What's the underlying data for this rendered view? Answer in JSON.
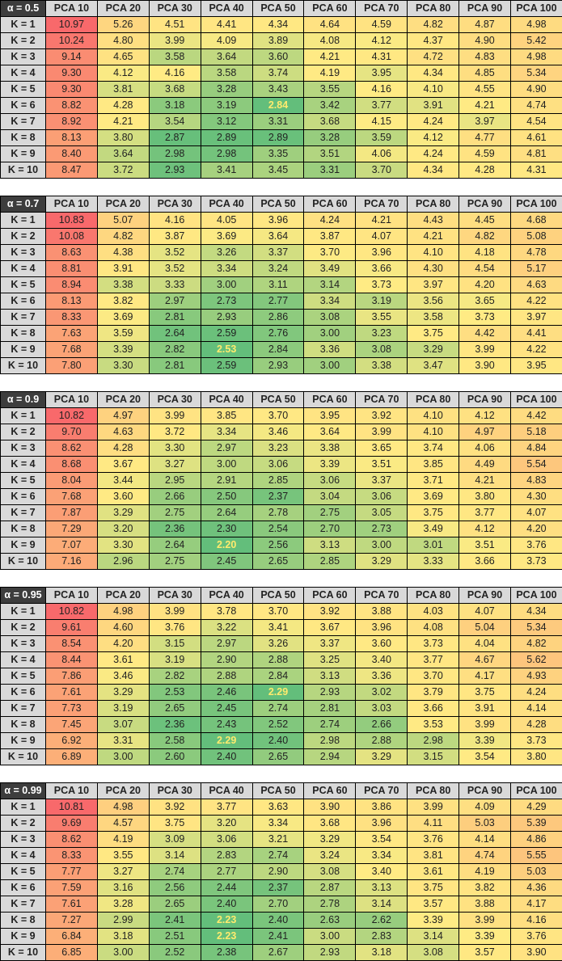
{
  "chart_data": {
    "type": "heatmap",
    "columns": [
      "PCA 10",
      "PCA 20",
      "PCA 30",
      "PCA 40",
      "PCA 50",
      "PCA 60",
      "PCA 70",
      "PCA 80",
      "PCA 90",
      "PCA 100"
    ],
    "rows": [
      "K = 1",
      "K = 2",
      "K = 3",
      "K = 4",
      "K = 5",
      "K = 6",
      "K = 7",
      "K = 8",
      "K = 9",
      "K = 10"
    ],
    "colors": {
      "low": "#63be7b",
      "mid": "#ffeb84",
      "high": "#f8696b",
      "header_bg": "#d9d9d9",
      "corner_bg": "#3d3d3d"
    },
    "tables": [
      {
        "label": "α = 0.5",
        "values": [
          [
            10.97,
            5.26,
            4.51,
            4.41,
            4.34,
            4.64,
            4.59,
            4.82,
            4.87,
            4.98
          ],
          [
            10.24,
            4.8,
            3.99,
            4.09,
            3.89,
            4.08,
            4.12,
            4.37,
            4.9,
            5.42
          ],
          [
            9.14,
            4.65,
            3.58,
            3.64,
            3.6,
            4.21,
            4.31,
            4.72,
            4.83,
            4.98
          ],
          [
            9.3,
            4.12,
            4.16,
            3.58,
            3.74,
            4.19,
            3.95,
            4.34,
            4.85,
            5.34
          ],
          [
            9.3,
            3.81,
            3.68,
            3.28,
            3.43,
            3.55,
            4.16,
            4.1,
            4.55,
            4.9
          ],
          [
            8.82,
            4.28,
            3.18,
            3.19,
            2.84,
            3.42,
            3.77,
            3.91,
            4.21,
            4.74
          ],
          [
            8.92,
            4.21,
            3.54,
            3.12,
            3.31,
            3.68,
            4.15,
            4.24,
            3.97,
            4.54
          ],
          [
            8.13,
            3.8,
            2.87,
            2.89,
            2.89,
            3.28,
            3.59,
            4.12,
            4.77,
            4.61
          ],
          [
            8.4,
            3.64,
            2.98,
            2.98,
            3.35,
            3.51,
            4.06,
            4.24,
            4.59,
            4.81
          ],
          [
            8.47,
            3.72,
            2.93,
            3.41,
            3.45,
            3.31,
            3.7,
            4.34,
            4.28,
            4.31
          ]
        ]
      },
      {
        "label": "α = 0.7",
        "values": [
          [
            10.83,
            5.07,
            4.16,
            4.05,
            3.96,
            4.24,
            4.21,
            4.43,
            4.45,
            4.68
          ],
          [
            10.08,
            4.82,
            3.87,
            3.69,
            3.64,
            3.87,
            4.07,
            4.21,
            4.82,
            5.08
          ],
          [
            8.63,
            4.38,
            3.52,
            3.26,
            3.37,
            3.7,
            3.96,
            4.1,
            4.18,
            4.78
          ],
          [
            8.81,
            3.91,
            3.52,
            3.34,
            3.24,
            3.49,
            3.66,
            4.3,
            4.54,
            5.17
          ],
          [
            8.94,
            3.38,
            3.33,
            3.0,
            3.11,
            3.14,
            3.73,
            3.97,
            4.2,
            4.63
          ],
          [
            8.13,
            3.82,
            2.97,
            2.73,
            2.77,
            3.34,
            3.19,
            3.56,
            3.65,
            4.22
          ],
          [
            8.33,
            3.69,
            2.81,
            2.93,
            2.86,
            3.08,
            3.55,
            3.58,
            3.73,
            3.97
          ],
          [
            7.63,
            3.59,
            2.64,
            2.59,
            2.76,
            3.0,
            3.23,
            3.75,
            4.42,
            4.41
          ],
          [
            7.68,
            3.39,
            2.82,
            2.53,
            2.84,
            3.36,
            3.08,
            3.29,
            3.99,
            4.22
          ],
          [
            7.8,
            3.3,
            2.81,
            2.59,
            2.93,
            3.0,
            3.38,
            3.47,
            3.9,
            3.95
          ]
        ]
      },
      {
        "label": "α = 0.9",
        "values": [
          [
            10.82,
            4.97,
            3.99,
            3.85,
            3.7,
            3.95,
            3.92,
            4.1,
            4.12,
            4.42
          ],
          [
            9.7,
            4.63,
            3.72,
            3.34,
            3.46,
            3.64,
            3.99,
            4.1,
            4.97,
            5.18
          ],
          [
            8.62,
            4.28,
            3.3,
            2.97,
            3.23,
            3.38,
            3.65,
            3.74,
            4.06,
            4.84
          ],
          [
            8.68,
            3.67,
            3.27,
            3.0,
            3.06,
            3.39,
            3.51,
            3.85,
            4.49,
            5.54
          ],
          [
            8.04,
            3.44,
            2.95,
            2.91,
            2.85,
            3.06,
            3.37,
            3.71,
            4.21,
            4.83
          ],
          [
            7.68,
            3.6,
            2.66,
            2.5,
            2.37,
            3.04,
            3.06,
            3.69,
            3.8,
            4.3
          ],
          [
            7.87,
            3.29,
            2.75,
            2.64,
            2.78,
            2.75,
            3.05,
            3.75,
            3.77,
            4.07
          ],
          [
            7.29,
            3.2,
            2.36,
            2.3,
            2.54,
            2.7,
            2.73,
            3.49,
            4.12,
            4.2
          ],
          [
            7.07,
            3.3,
            2.64,
            2.2,
            2.56,
            3.13,
            3.0,
            3.01,
            3.51,
            3.76
          ],
          [
            7.16,
            2.96,
            2.75,
            2.45,
            2.65,
            2.85,
            3.29,
            3.33,
            3.66,
            3.73
          ]
        ]
      },
      {
        "label": "α = 0.95",
        "values": [
          [
            10.82,
            4.98,
            3.99,
            3.78,
            3.7,
            3.92,
            3.88,
            4.03,
            4.07,
            4.34
          ],
          [
            9.61,
            4.6,
            3.76,
            3.22,
            3.41,
            3.67,
            3.96,
            4.08,
            5.04,
            5.34
          ],
          [
            8.54,
            4.2,
            3.15,
            2.97,
            3.26,
            3.37,
            3.6,
            3.73,
            4.04,
            4.82
          ],
          [
            8.44,
            3.61,
            3.19,
            2.9,
            2.88,
            3.25,
            3.4,
            3.77,
            4.67,
            5.62
          ],
          [
            7.86,
            3.46,
            2.82,
            2.88,
            2.84,
            3.13,
            3.36,
            3.7,
            4.17,
            4.93
          ],
          [
            7.61,
            3.29,
            2.53,
            2.46,
            2.29,
            2.93,
            3.02,
            3.79,
            3.75,
            4.24
          ],
          [
            7.73,
            3.19,
            2.65,
            2.45,
            2.74,
            2.81,
            3.03,
            3.66,
            3.91,
            4.14
          ],
          [
            7.45,
            3.07,
            2.36,
            2.43,
            2.52,
            2.74,
            2.66,
            3.53,
            3.99,
            4.28
          ],
          [
            6.92,
            3.31,
            2.58,
            2.29,
            2.4,
            2.98,
            2.88,
            2.98,
            3.39,
            3.73
          ],
          [
            6.89,
            3.0,
            2.6,
            2.4,
            2.65,
            2.94,
            3.29,
            3.15,
            3.54,
            3.8
          ]
        ]
      },
      {
        "label": "α = 0.99",
        "values": [
          [
            10.81,
            4.98,
            3.92,
            3.77,
            3.63,
            3.9,
            3.86,
            3.99,
            4.09,
            4.29
          ],
          [
            9.69,
            4.57,
            3.75,
            3.2,
            3.34,
            3.68,
            3.96,
            4.11,
            5.03,
            5.39
          ],
          [
            8.62,
            4.19,
            3.09,
            3.06,
            3.21,
            3.29,
            3.54,
            3.76,
            4.14,
            4.86
          ],
          [
            8.33,
            3.55,
            3.14,
            2.83,
            2.74,
            3.24,
            3.34,
            3.81,
            4.74,
            5.55
          ],
          [
            7.77,
            3.27,
            2.74,
            2.77,
            2.9,
            3.08,
            3.4,
            3.61,
            4.19,
            5.03
          ],
          [
            7.59,
            3.16,
            2.56,
            2.44,
            2.37,
            2.87,
            3.13,
            3.75,
            3.82,
            4.36
          ],
          [
            7.61,
            3.28,
            2.65,
            2.4,
            2.7,
            2.78,
            3.14,
            3.57,
            3.88,
            4.17
          ],
          [
            7.27,
            2.99,
            2.41,
            2.23,
            2.4,
            2.63,
            2.62,
            3.39,
            3.99,
            4.16
          ],
          [
            6.84,
            3.18,
            2.51,
            2.23,
            2.41,
            3.0,
            2.83,
            3.14,
            3.39,
            3.76
          ],
          [
            6.85,
            3.0,
            2.52,
            2.38,
            2.67,
            2.93,
            3.18,
            3.08,
            3.57,
            3.9
          ]
        ]
      }
    ]
  }
}
